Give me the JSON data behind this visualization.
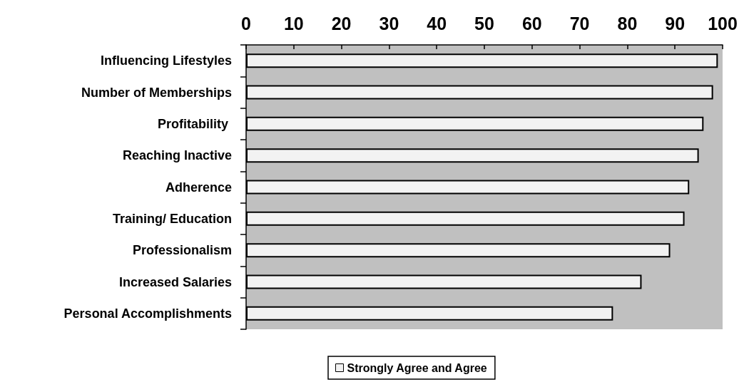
{
  "chart_data": {
    "type": "bar",
    "orientation": "horizontal",
    "categories": [
      "Influencing Lifestyles",
      "Number of Memberships",
      "Profitability ",
      "Reaching Inactive",
      "Adherence",
      "Training/ Education",
      "Professionalism",
      "Increased Salaries",
      "Personal Accomplishments"
    ],
    "series": [
      {
        "name": "Strongly Agree and Agree",
        "color": "#f2f2f2",
        "values": [
          99,
          98,
          96,
          95,
          93,
          92,
          89,
          83,
          77
        ]
      }
    ],
    "xlim": [
      0,
      100
    ],
    "xticks": [
      0,
      10,
      20,
      30,
      40,
      50,
      60,
      70,
      80,
      90,
      100
    ],
    "grid": false,
    "legend": "bottom"
  }
}
